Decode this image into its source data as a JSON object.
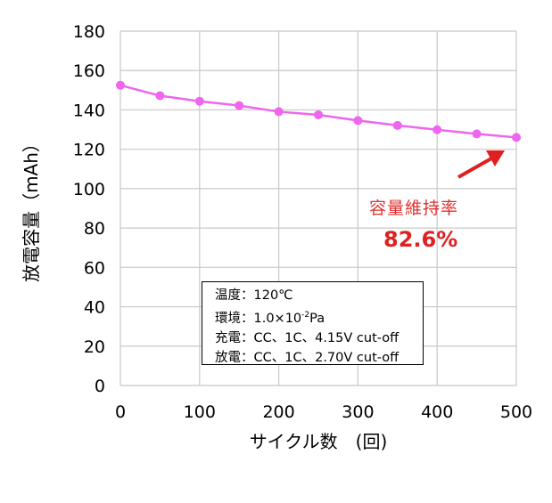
{
  "chart_data": {
    "type": "line",
    "x": [
      0,
      50,
      100,
      150,
      200,
      250,
      300,
      350,
      400,
      450,
      500
    ],
    "series": [
      {
        "values": [
          152.5,
          147.2,
          144.4,
          142.2,
          139.1,
          137.5,
          134.6,
          132.1,
          129.9,
          127.8,
          126.0
        ],
        "color": "#ee66ee"
      }
    ],
    "xlabel": "サイクル数　(回)",
    "ylabel": "放電容量（mAh）",
    "xlim": [
      0,
      500
    ],
    "ylim": [
      0,
      180
    ],
    "xticks": [
      "0",
      "100",
      "200",
      "300",
      "400",
      "500"
    ],
    "yticks": [
      "0",
      "20",
      "40",
      "60",
      "80",
      "100",
      "120",
      "140",
      "160",
      "180"
    ],
    "grid": true,
    "annotations": {
      "retention_label": "容量維持率",
      "retention_value": "82.6%",
      "arrow_color": "#e02020"
    },
    "conditions": {
      "temp": "温度：120℃",
      "env_prefix": "環境：1.0×10",
      "env_exp": "-2",
      "env_suffix": "Pa",
      "charge": "充電：CC、1C、4.15V cut-off",
      "discharge": "放電：CC、1C、2.70V cut-off"
    }
  }
}
